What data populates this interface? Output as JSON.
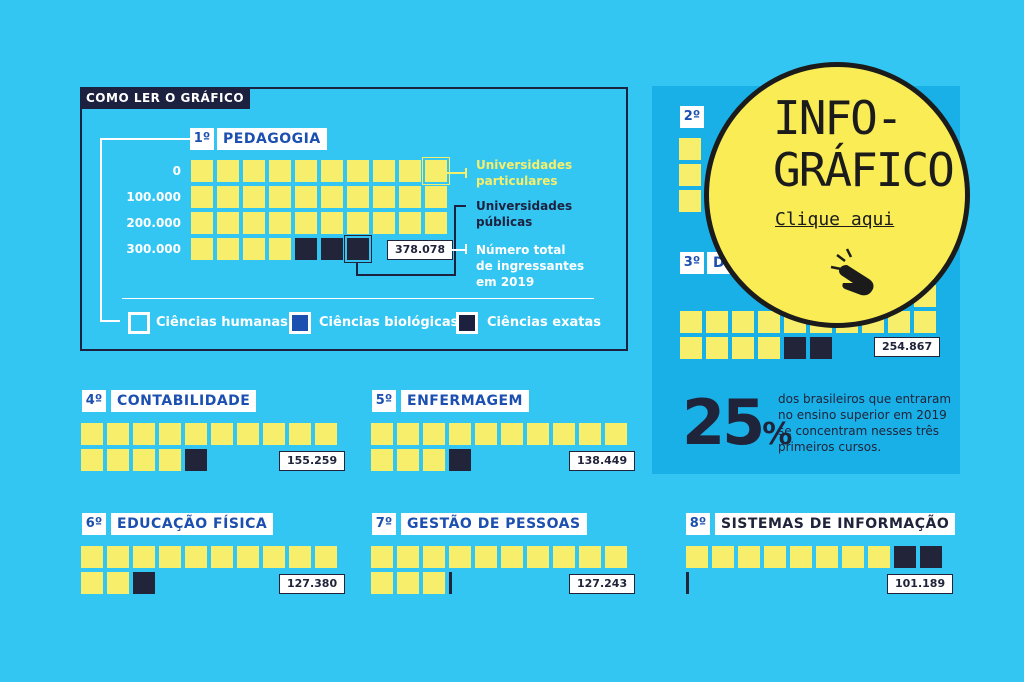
{
  "colors": {
    "background": "#34c6f2",
    "particulares": "#f7ef6c",
    "publicas": "#22243a",
    "badge": "#f9ec54",
    "accent_blue": "#1b4fb0"
  },
  "legend_box": {
    "header": "COMO LER O GRÁFICO",
    "rank": "1º",
    "course": "PEDAGOGIA",
    "axis_labels": [
      "0",
      "100.000",
      "200.000",
      "300.000"
    ],
    "total": "378.078",
    "notes": {
      "particulares": [
        "Universidades",
        "particulares"
      ],
      "publicas": [
        "Universidades",
        "públicas"
      ],
      "total": [
        "Número total",
        "de ingressantes",
        "em 2019"
      ]
    },
    "categories": {
      "humanas": "Ciências humanas",
      "biologicas": "Ciências biológicas",
      "exatas": "Ciências exatas"
    }
  },
  "summary": {
    "percent": "25",
    "percent_sign": "%",
    "text": [
      "dos brasileiros que entraram",
      "no ensino superior em 2019",
      "se concentram nesses três",
      "primeiros cursos."
    ]
  },
  "badge": {
    "title_line1": "INFO-",
    "title_line2": "GRÁFICO",
    "link": "Clique aqui",
    "icon": "pointing-hand-icon"
  },
  "chart_data": {
    "type": "table",
    "unit_square_value": 10000,
    "courses": [
      {
        "rank": "1º",
        "name": "PEDAGOGIA",
        "total": "378.078",
        "category": "Ciências humanas"
      },
      {
        "rank": "2º",
        "name": "",
        "total": "",
        "category": "Ciências humanas"
      },
      {
        "rank": "3º",
        "name": "D",
        "total": "254.867",
        "category": ""
      },
      {
        "rank": "4º",
        "name": "CONTABILIDADE",
        "total": "155.259",
        "category": "Ciências humanas"
      },
      {
        "rank": "5º",
        "name": "ENFERMAGEM",
        "total": "138.449",
        "category": "Ciências biológicas"
      },
      {
        "rank": "6º",
        "name": "EDUCAÇÃO FÍSICA",
        "total": "127.380",
        "category": "Ciências biológicas"
      },
      {
        "rank": "7º",
        "name": "GESTÃO DE PESSOAS",
        "total": "127.243",
        "category": "Ciências humanas"
      },
      {
        "rank": "8º",
        "name": "SISTEMAS DE INFORMAÇÃO",
        "total": "101.189",
        "category": "Ciências exatas"
      }
    ]
  }
}
